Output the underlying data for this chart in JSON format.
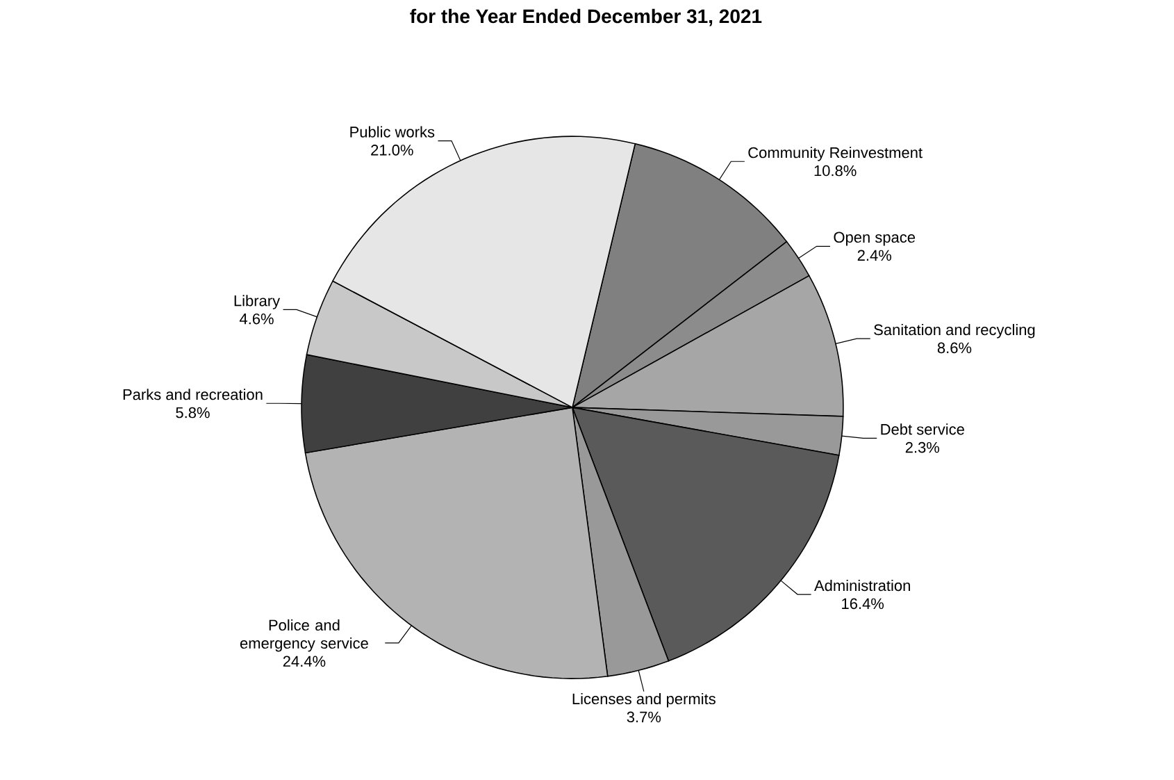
{
  "chart_data": {
    "type": "pie",
    "title": "for the Year Ended December 31, 2021",
    "categories": [
      "Community Reinvestment",
      "Open space",
      "Sanitation and recycling",
      "Debt service",
      "Administration",
      "Licenses and permits",
      "Police and emergency service",
      "Parks and recreation",
      "Library",
      "Public works"
    ],
    "values": [
      10.8,
      2.4,
      8.6,
      2.3,
      16.4,
      3.7,
      24.4,
      5.8,
      4.6,
      21.0
    ],
    "value_labels": [
      "10.8%",
      "2.4%",
      "8.6%",
      "2.3%",
      "16.4%",
      "3.7%",
      "24.4%",
      "5.8%",
      "4.6%",
      "21.0%"
    ],
    "colors": [
      "#808080",
      "#8c8c8c",
      "#a6a6a6",
      "#999999",
      "#5a5a5a",
      "#999999",
      "#b3b3b3",
      "#404040",
      "#c8c8c8",
      "#e6e6e6"
    ]
  }
}
